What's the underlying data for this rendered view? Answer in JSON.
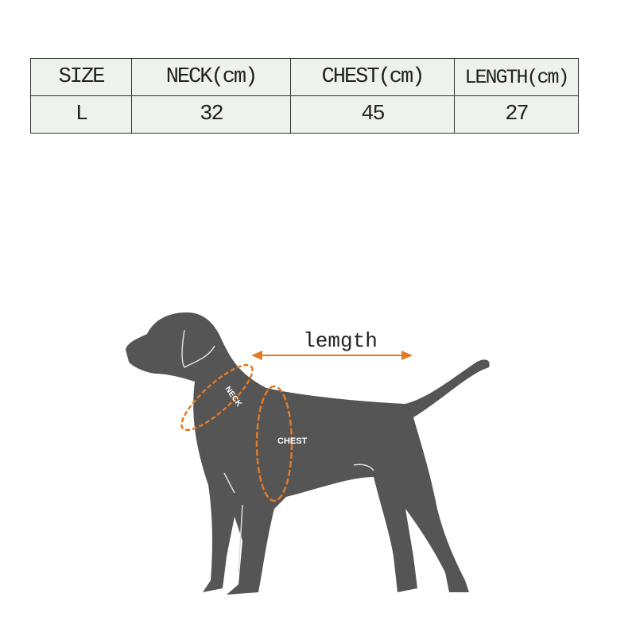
{
  "size_table": {
    "headers": [
      "SIZE",
      "NECK(cm)",
      "CHEST(cm)",
      "LENGTH(cm)"
    ],
    "rows": [
      [
        "L",
        "32",
        "45",
        "27"
      ]
    ]
  },
  "diagram": {
    "length_label": "lemgth",
    "neck_label": "NECK",
    "chest_label": "CHEST",
    "colors": {
      "dog": "#555555",
      "measure": "#e07a26",
      "table_bg": "#eef2ec"
    }
  }
}
